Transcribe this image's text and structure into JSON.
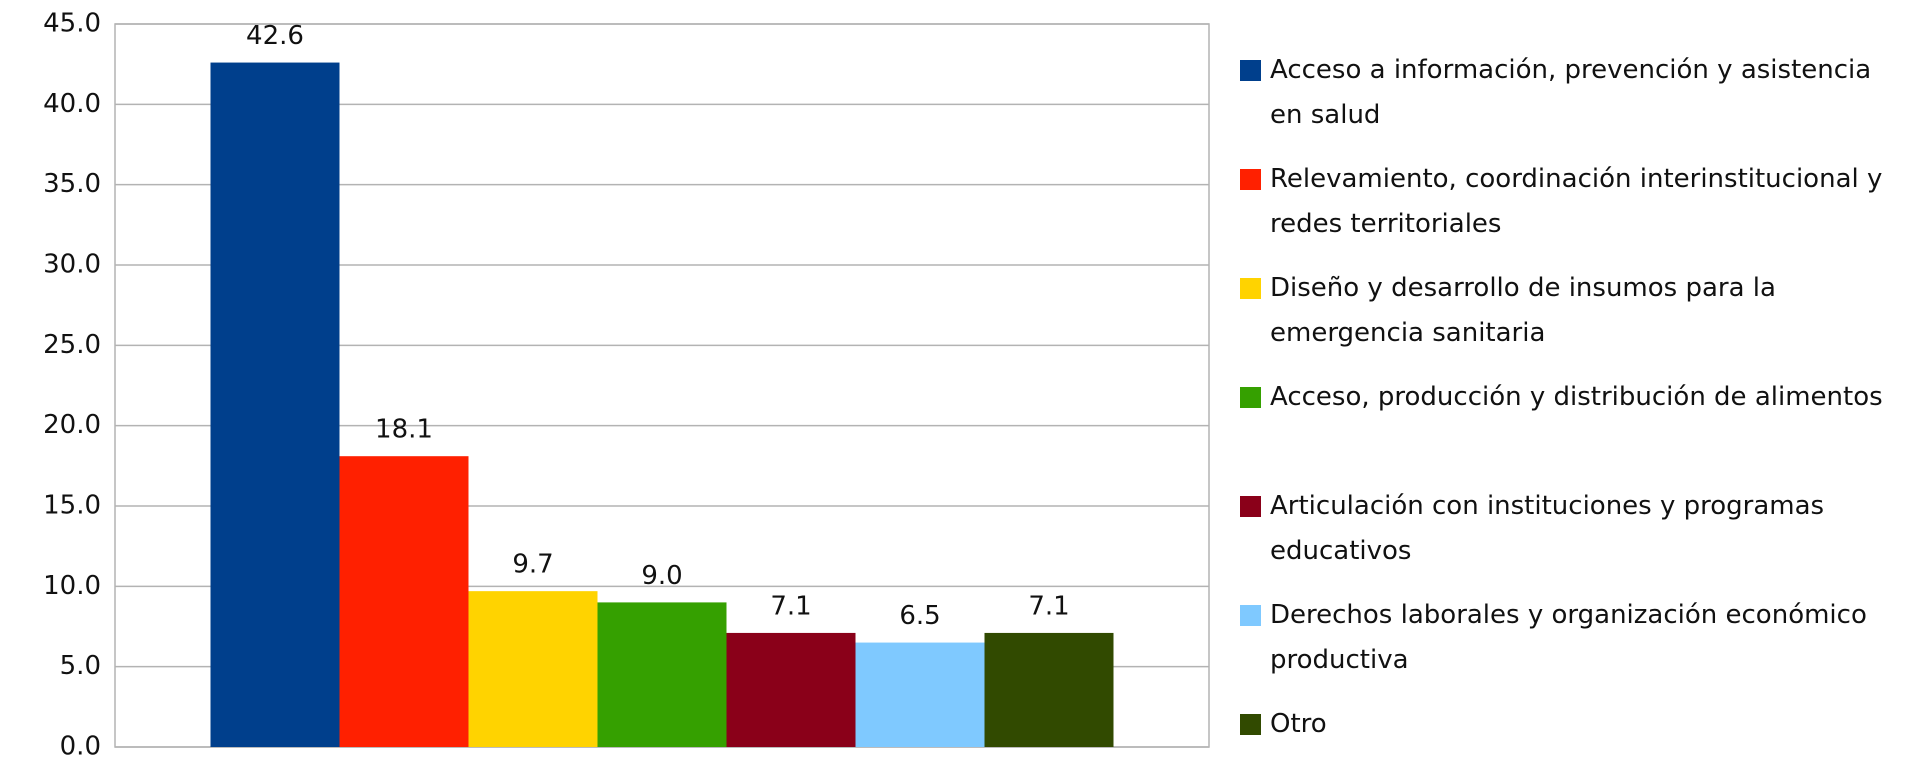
{
  "chart_data": {
    "type": "bar",
    "categories": [
      null
    ],
    "series": [
      {
        "name": "Acceso a información, prevención y asistencia en salud",
        "color": "#003f8c",
        "values": [
          42.6
        ],
        "value_labels": [
          "42.6"
        ]
      },
      {
        "name": "Relevamiento, coordinación interinstitucional y redes territoriales",
        "color": "#ff2000",
        "values": [
          18.1
        ],
        "value_labels": [
          "18.1"
        ]
      },
      {
        "name": "Diseño y desarrollo de insumos para la emergencia sanitaria",
        "color": "#ffd300",
        "values": [
          9.7
        ],
        "value_labels": [
          "9.7"
        ]
      },
      {
        "name": "Acceso, producción y distribución de alimentos",
        "color": "#35a000",
        "values": [
          9.0
        ],
        "value_labels": [
          "9.0"
        ]
      },
      {
        "name": "Articulación con instituciones y programas educativos",
        "color": "#8a0019",
        "values": [
          7.1
        ],
        "value_labels": [
          "7.1"
        ]
      },
      {
        "name": "Derechos laborales y organización económico productiva",
        "color": "#7fc9ff",
        "values": [
          6.5
        ],
        "value_labels": [
          "6.5"
        ]
      },
      {
        "name": "Otro",
        "color": "#314a00",
        "values": [
          7.1
        ],
        "value_labels": [
          "7.1"
        ]
      }
    ],
    "ylim": [
      0,
      45
    ],
    "yticks": [
      {
        "value": 0,
        "label": "0.0"
      },
      {
        "value": 5,
        "label": "5.0"
      },
      {
        "value": 10,
        "label": "10.0"
      },
      {
        "value": 15,
        "label": "15.0"
      },
      {
        "value": 20,
        "label": "20.0"
      },
      {
        "value": 25,
        "label": "25.0"
      },
      {
        "value": 30,
        "label": "30.0"
      },
      {
        "value": 35,
        "label": "35.0"
      },
      {
        "value": 40,
        "label": "40.0"
      },
      {
        "value": 45,
        "label": "45.0"
      }
    ],
    "grid": true,
    "legend": "right"
  }
}
